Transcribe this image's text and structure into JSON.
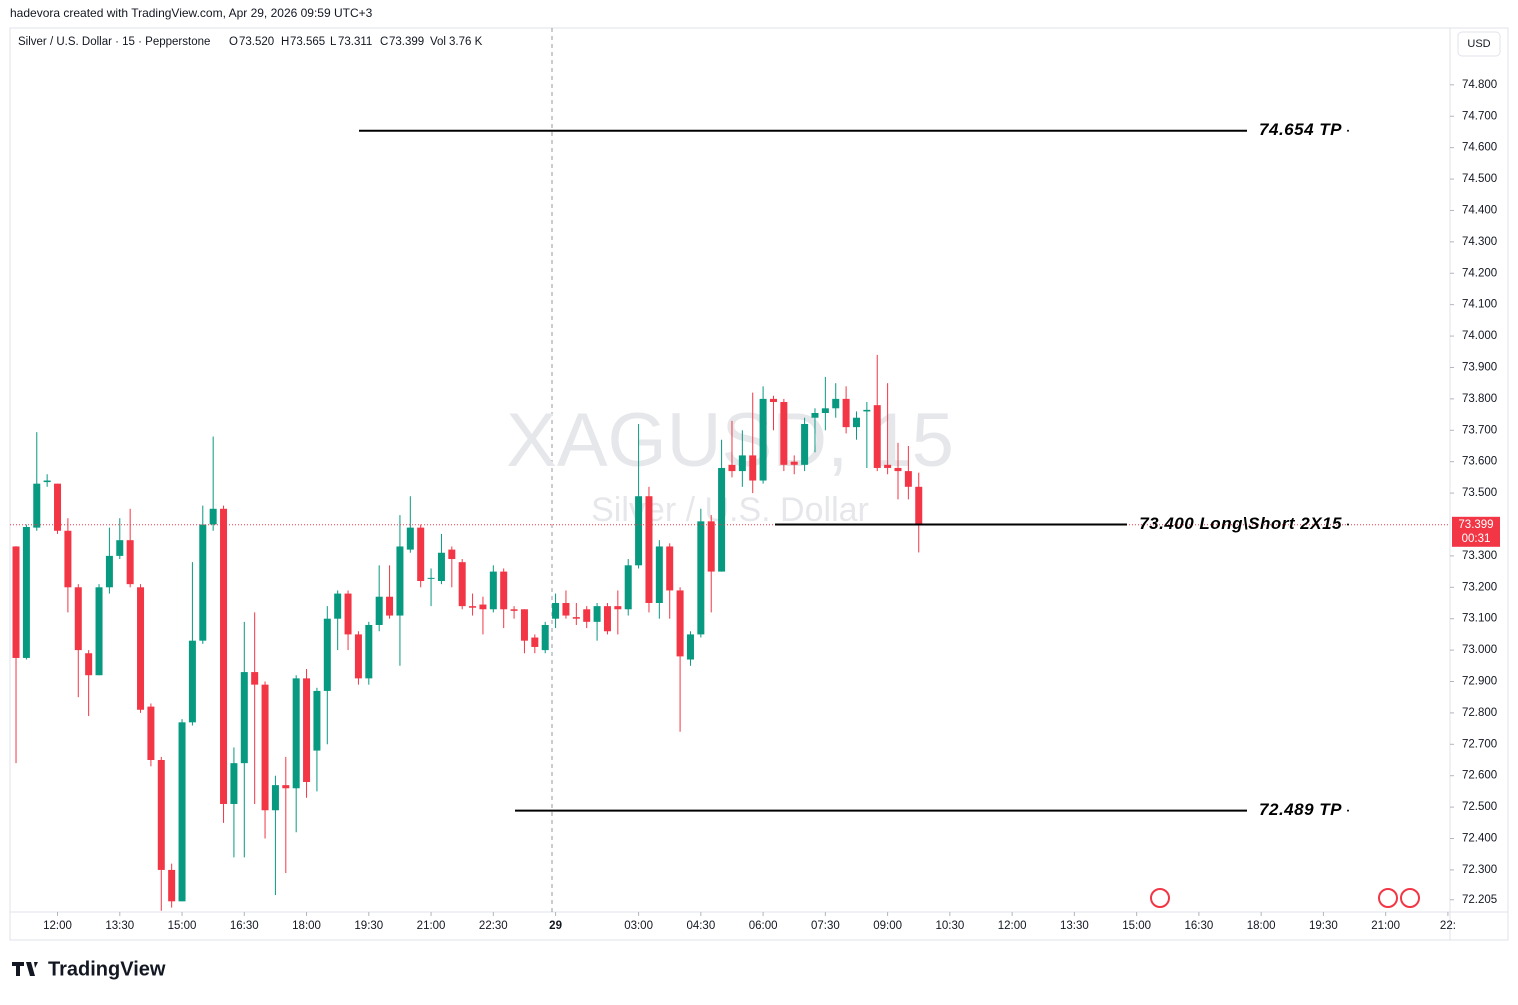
{
  "header": {
    "credit": "hadevora created with TradingView.com, Apr 29, 2026 09:59 UTC+3",
    "symbol": "Silver / U.S. Dollar · 15 · Pepperstone",
    "o_label": "O",
    "o": "73.520",
    "h_label": "H",
    "h": "73.565",
    "l_label": "L",
    "l": "73.311",
    "c_label": "C",
    "c": "73.399",
    "vol_label": "Vol",
    "vol": "3.76 K",
    "currency": "USD"
  },
  "footer": {
    "logo": "TradingView"
  },
  "chart_data": {
    "type": "candlestick",
    "watermark": {
      "symbol": "XAGUSD, 15",
      "description": "Silver / U.S. Dollar"
    },
    "up_color": "#089981",
    "down_color": "#f23645",
    "open": [
      73.33,
      72.975,
      73.39,
      73.535,
      73.53,
      73.38,
      73.2,
      72.99,
      72.92,
      73.2,
      73.3,
      73.35,
      73.2,
      72.82,
      72.65,
      72.3,
      72.2,
      72.77,
      73.03,
      73.4,
      73.45,
      72.51,
      72.64,
      72.93,
      72.89,
      72.49,
      72.57,
      72.56,
      72.91,
      72.68,
      72.87,
      73.1,
      73.18,
      73.05,
      72.91,
      73.08,
      73.17,
      73.11,
      73.32,
      73.39,
      73.23,
      73.22,
      73.32,
      73.28,
      73.14,
      73.145,
      73.13,
      73.25,
      73.13,
      73.13,
      73.04,
      73.0,
      73.1,
      73.15,
      73.105,
      73.13,
      73.09,
      73.14,
      73.14,
      73.13,
      73.27,
      73.49,
      73.15,
      73.33,
      73.19,
      72.97,
      73.05,
      73.41,
      73.25,
      73.59,
      73.57,
      73.62,
      73.54,
      73.8,
      73.79,
      73.6,
      73.59,
      73.74,
      73.755,
      73.77,
      73.8,
      73.71,
      73.76,
      73.78,
      73.59,
      73.58,
      73.57,
      73.52
    ],
    "high": [
      73.331,
      73.4,
      73.694,
      73.56,
      73.53,
      73.42,
      73.21,
      73.0,
      73.21,
      73.39,
      73.42,
      73.45,
      73.21,
      72.83,
      72.66,
      72.32,
      72.78,
      73.28,
      73.46,
      73.68,
      73.46,
      72.69,
      73.09,
      73.12,
      72.9,
      72.6,
      72.66,
      72.92,
      72.94,
      72.88,
      73.14,
      73.19,
      73.19,
      73.06,
      73.09,
      73.27,
      73.27,
      73.43,
      73.49,
      73.4,
      73.26,
      73.37,
      73.33,
      73.29,
      73.18,
      73.17,
      73.27,
      73.26,
      73.14,
      73.13,
      73.05,
      73.09,
      73.18,
      73.19,
      73.15,
      73.14,
      73.15,
      73.15,
      73.19,
      73.29,
      73.72,
      73.52,
      73.35,
      73.34,
      73.2,
      73.06,
      73.45,
      73.43,
      73.67,
      73.73,
      73.7,
      73.82,
      73.84,
      73.81,
      73.8,
      73.62,
      73.74,
      73.77,
      73.87,
      73.85,
      73.84,
      73.76,
      73.79,
      73.94,
      73.85,
      73.66,
      73.65,
      73.565
    ],
    "low": [
      72.64,
      72.97,
      73.38,
      73.52,
      73.37,
      73.12,
      72.85,
      72.79,
      72.92,
      73.18,
      73.29,
      73.2,
      72.8,
      72.63,
      72.17,
      72.18,
      72.2,
      72.76,
      73.02,
      73.38,
      72.45,
      72.34,
      72.34,
      72.51,
      72.4,
      72.22,
      72.29,
      72.42,
      72.53,
      72.55,
      72.7,
      73.0,
      73.0,
      72.89,
      72.89,
      73.06,
      73.1,
      72.95,
      73.31,
      73.2,
      73.14,
      73.21,
      73.2,
      73.13,
      73.11,
      73.05,
      73.12,
      73.07,
      73.1,
      72.99,
      72.99,
      72.99,
      73.07,
      73.1,
      73.08,
      73.07,
      73.03,
      73.05,
      73.05,
      73.11,
      73.26,
      73.12,
      73.1,
      73.1,
      72.74,
      72.95,
      73.04,
      73.12,
      73.25,
      73.55,
      73.52,
      73.5,
      73.53,
      73.7,
      73.57,
      73.56,
      73.57,
      73.63,
      73.7,
      73.74,
      73.69,
      73.67,
      73.58,
      73.57,
      73.56,
      73.48,
      73.48,
      73.311
    ],
    "close": [
      72.975,
      73.392,
      73.53,
      73.54,
      73.38,
      73.2,
      73.0,
      72.92,
      73.2,
      73.3,
      73.35,
      73.21,
      72.81,
      72.65,
      72.3,
      72.2,
      72.77,
      73.03,
      73.4,
      73.45,
      72.51,
      72.64,
      72.93,
      72.89,
      72.49,
      72.57,
      72.56,
      72.91,
      72.58,
      72.87,
      73.1,
      73.18,
      73.05,
      72.91,
      73.08,
      73.17,
      73.11,
      73.33,
      73.39,
      73.22,
      73.23,
      73.31,
      73.29,
      73.14,
      73.135,
      73.13,
      73.25,
      73.13,
      73.125,
      73.03,
      73.01,
      73.08,
      73.15,
      73.11,
      73.1,
      73.09,
      73.14,
      73.06,
      73.13,
      73.27,
      73.49,
      73.15,
      73.33,
      73.19,
      72.98,
      73.05,
      73.41,
      73.25,
      73.58,
      73.57,
      73.62,
      73.54,
      73.8,
      73.79,
      73.59,
      73.59,
      73.72,
      73.755,
      73.77,
      73.8,
      73.71,
      73.74,
      73.765,
      73.58,
      73.58,
      73.57,
      73.52,
      73.399
    ],
    "xlim": [
      -0.58,
      138.2
    ],
    "xticks": [
      {
        "value": 4,
        "label": "12:00"
      },
      {
        "value": 10,
        "label": "13:30"
      },
      {
        "value": 16,
        "label": "15:00"
      },
      {
        "value": 22,
        "label": "16:30"
      },
      {
        "value": 28,
        "label": "18:00"
      },
      {
        "value": 34,
        "label": "19:30"
      },
      {
        "value": 40,
        "label": "21:00"
      },
      {
        "value": 46,
        "label": "22:30"
      },
      {
        "value": 52,
        "label": "29",
        "bold": true
      },
      {
        "value": 60,
        "label": "03:00"
      },
      {
        "value": 66,
        "label": "04:30"
      },
      {
        "value": 72,
        "label": "06:00"
      },
      {
        "value": 78,
        "label": "07:30"
      },
      {
        "value": 84,
        "label": "09:00"
      },
      {
        "value": 90,
        "label": "10:30"
      },
      {
        "value": 96,
        "label": "12:00"
      },
      {
        "value": 102,
        "label": "13:30"
      },
      {
        "value": 108,
        "label": "15:00"
      },
      {
        "value": 114,
        "label": "16:30"
      },
      {
        "value": 120,
        "label": "18:00"
      },
      {
        "value": 126,
        "label": "19:30"
      },
      {
        "value": 132,
        "label": "21:00"
      },
      {
        "value": 138,
        "label": "22:"
      }
    ],
    "ylim": [
      72.166,
      74.981
    ],
    "yticks": [
      {
        "value": 72.205,
        "label": "72.205"
      },
      {
        "value": 72.3,
        "label": "72.300"
      },
      {
        "value": 72.4,
        "label": "72.400"
      },
      {
        "value": 72.5,
        "label": "72.500"
      },
      {
        "value": 72.6,
        "label": "72.600"
      },
      {
        "value": 72.7,
        "label": "72.700"
      },
      {
        "value": 72.8,
        "label": "72.800"
      },
      {
        "value": 72.9,
        "label": "72.900"
      },
      {
        "value": 73,
        "label": "73.000"
      },
      {
        "value": 73.1,
        "label": "73.100"
      },
      {
        "value": 73.2,
        "label": "73.200"
      },
      {
        "value": 73.3,
        "label": "73.300"
      },
      {
        "value": 73.5,
        "label": "73.500"
      },
      {
        "value": 73.6,
        "label": "73.600"
      },
      {
        "value": 73.7,
        "label": "73.700"
      },
      {
        "value": 73.8,
        "label": "73.800"
      },
      {
        "value": 73.9,
        "label": "73.900"
      },
      {
        "value": 74,
        "label": "74.000"
      },
      {
        "value": 74.1,
        "label": "74.100"
      },
      {
        "value": 74.2,
        "label": "74.200"
      },
      {
        "value": 74.3,
        "label": "74.300"
      },
      {
        "value": 74.4,
        "label": "74.400"
      },
      {
        "value": 74.5,
        "label": "74.500"
      },
      {
        "value": 74.6,
        "label": "74.600"
      },
      {
        "value": 74.7,
        "label": "74.700"
      },
      {
        "value": 74.8,
        "label": "74.800"
      }
    ],
    "last_price": 73.399,
    "countdown": "00:31",
    "annotations": [
      {
        "value": 74.654,
        "label": "74.654 TP"
      },
      {
        "value": 73.4,
        "label": "73.400 Long\\Short 2X15"
      },
      {
        "value": 72.489,
        "label": "72.489 TP"
      }
    ]
  }
}
